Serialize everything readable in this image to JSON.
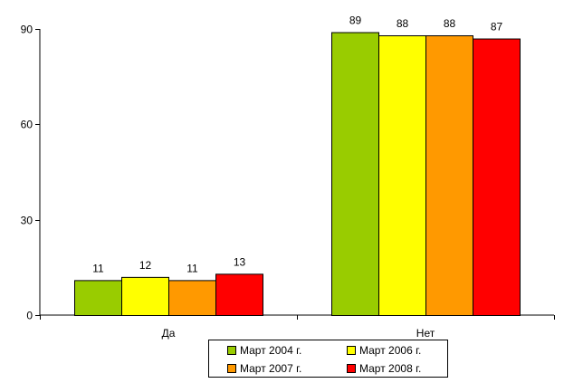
{
  "chart_data": {
    "type": "bar",
    "categories": [
      "Да",
      "Нет"
    ],
    "series": [
      {
        "name": "Март 2004 г.",
        "values": [
          11,
          89
        ],
        "color": "#99cc00"
      },
      {
        "name": "Март 2006 г.",
        "values": [
          12,
          88
        ],
        "color": "#ffff00"
      },
      {
        "name": "Март 2007 г.",
        "values": [
          11,
          88
        ],
        "color": "#ff9900"
      },
      {
        "name": "Март 2008 г.",
        "values": [
          13,
          87
        ],
        "color": "#ff0000"
      }
    ],
    "yticks": [
      0,
      30,
      60,
      90
    ],
    "ylim": [
      0,
      90
    ],
    "grid": false,
    "legend_position": "bottom",
    "title": "",
    "xlabel": "",
    "ylabel": ""
  }
}
